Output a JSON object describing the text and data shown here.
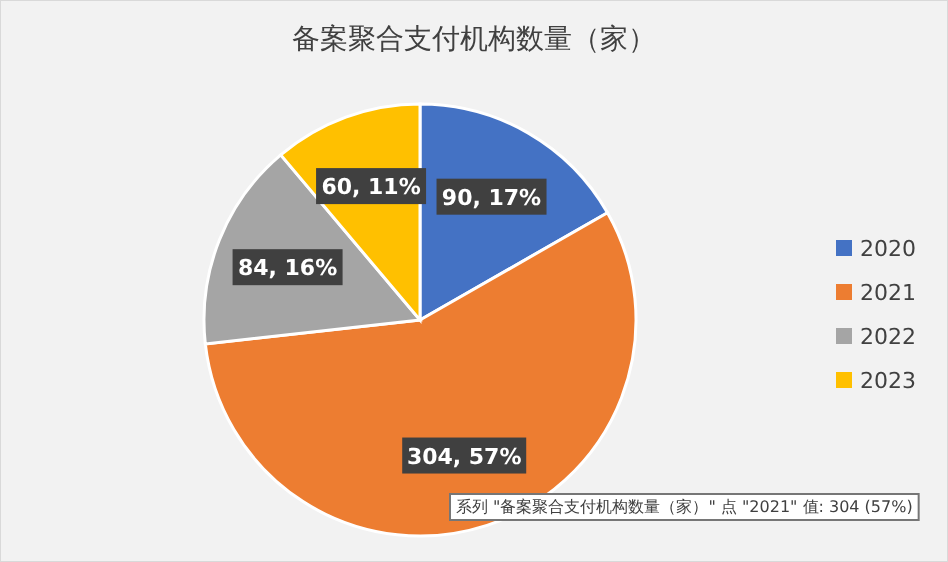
{
  "chart_data": {
    "type": "pie",
    "title": "备案聚合支付机构数量（家）",
    "categories": [
      "2020",
      "2021",
      "2022",
      "2023"
    ],
    "values": [
      90,
      304,
      84,
      60
    ],
    "colors": [
      "#4472c4",
      "#ed7d31",
      "#a5a5a5",
      "#ffc000"
    ],
    "value_labels": [
      "90, 17%",
      "304, 57%",
      "84, 16%",
      "60, 11%"
    ],
    "legend": "right",
    "annotations": [
      "系列 \"备案聚合支付机构数量（家）\" 点 \"2021\" 值: 304 (57%)"
    ]
  }
}
